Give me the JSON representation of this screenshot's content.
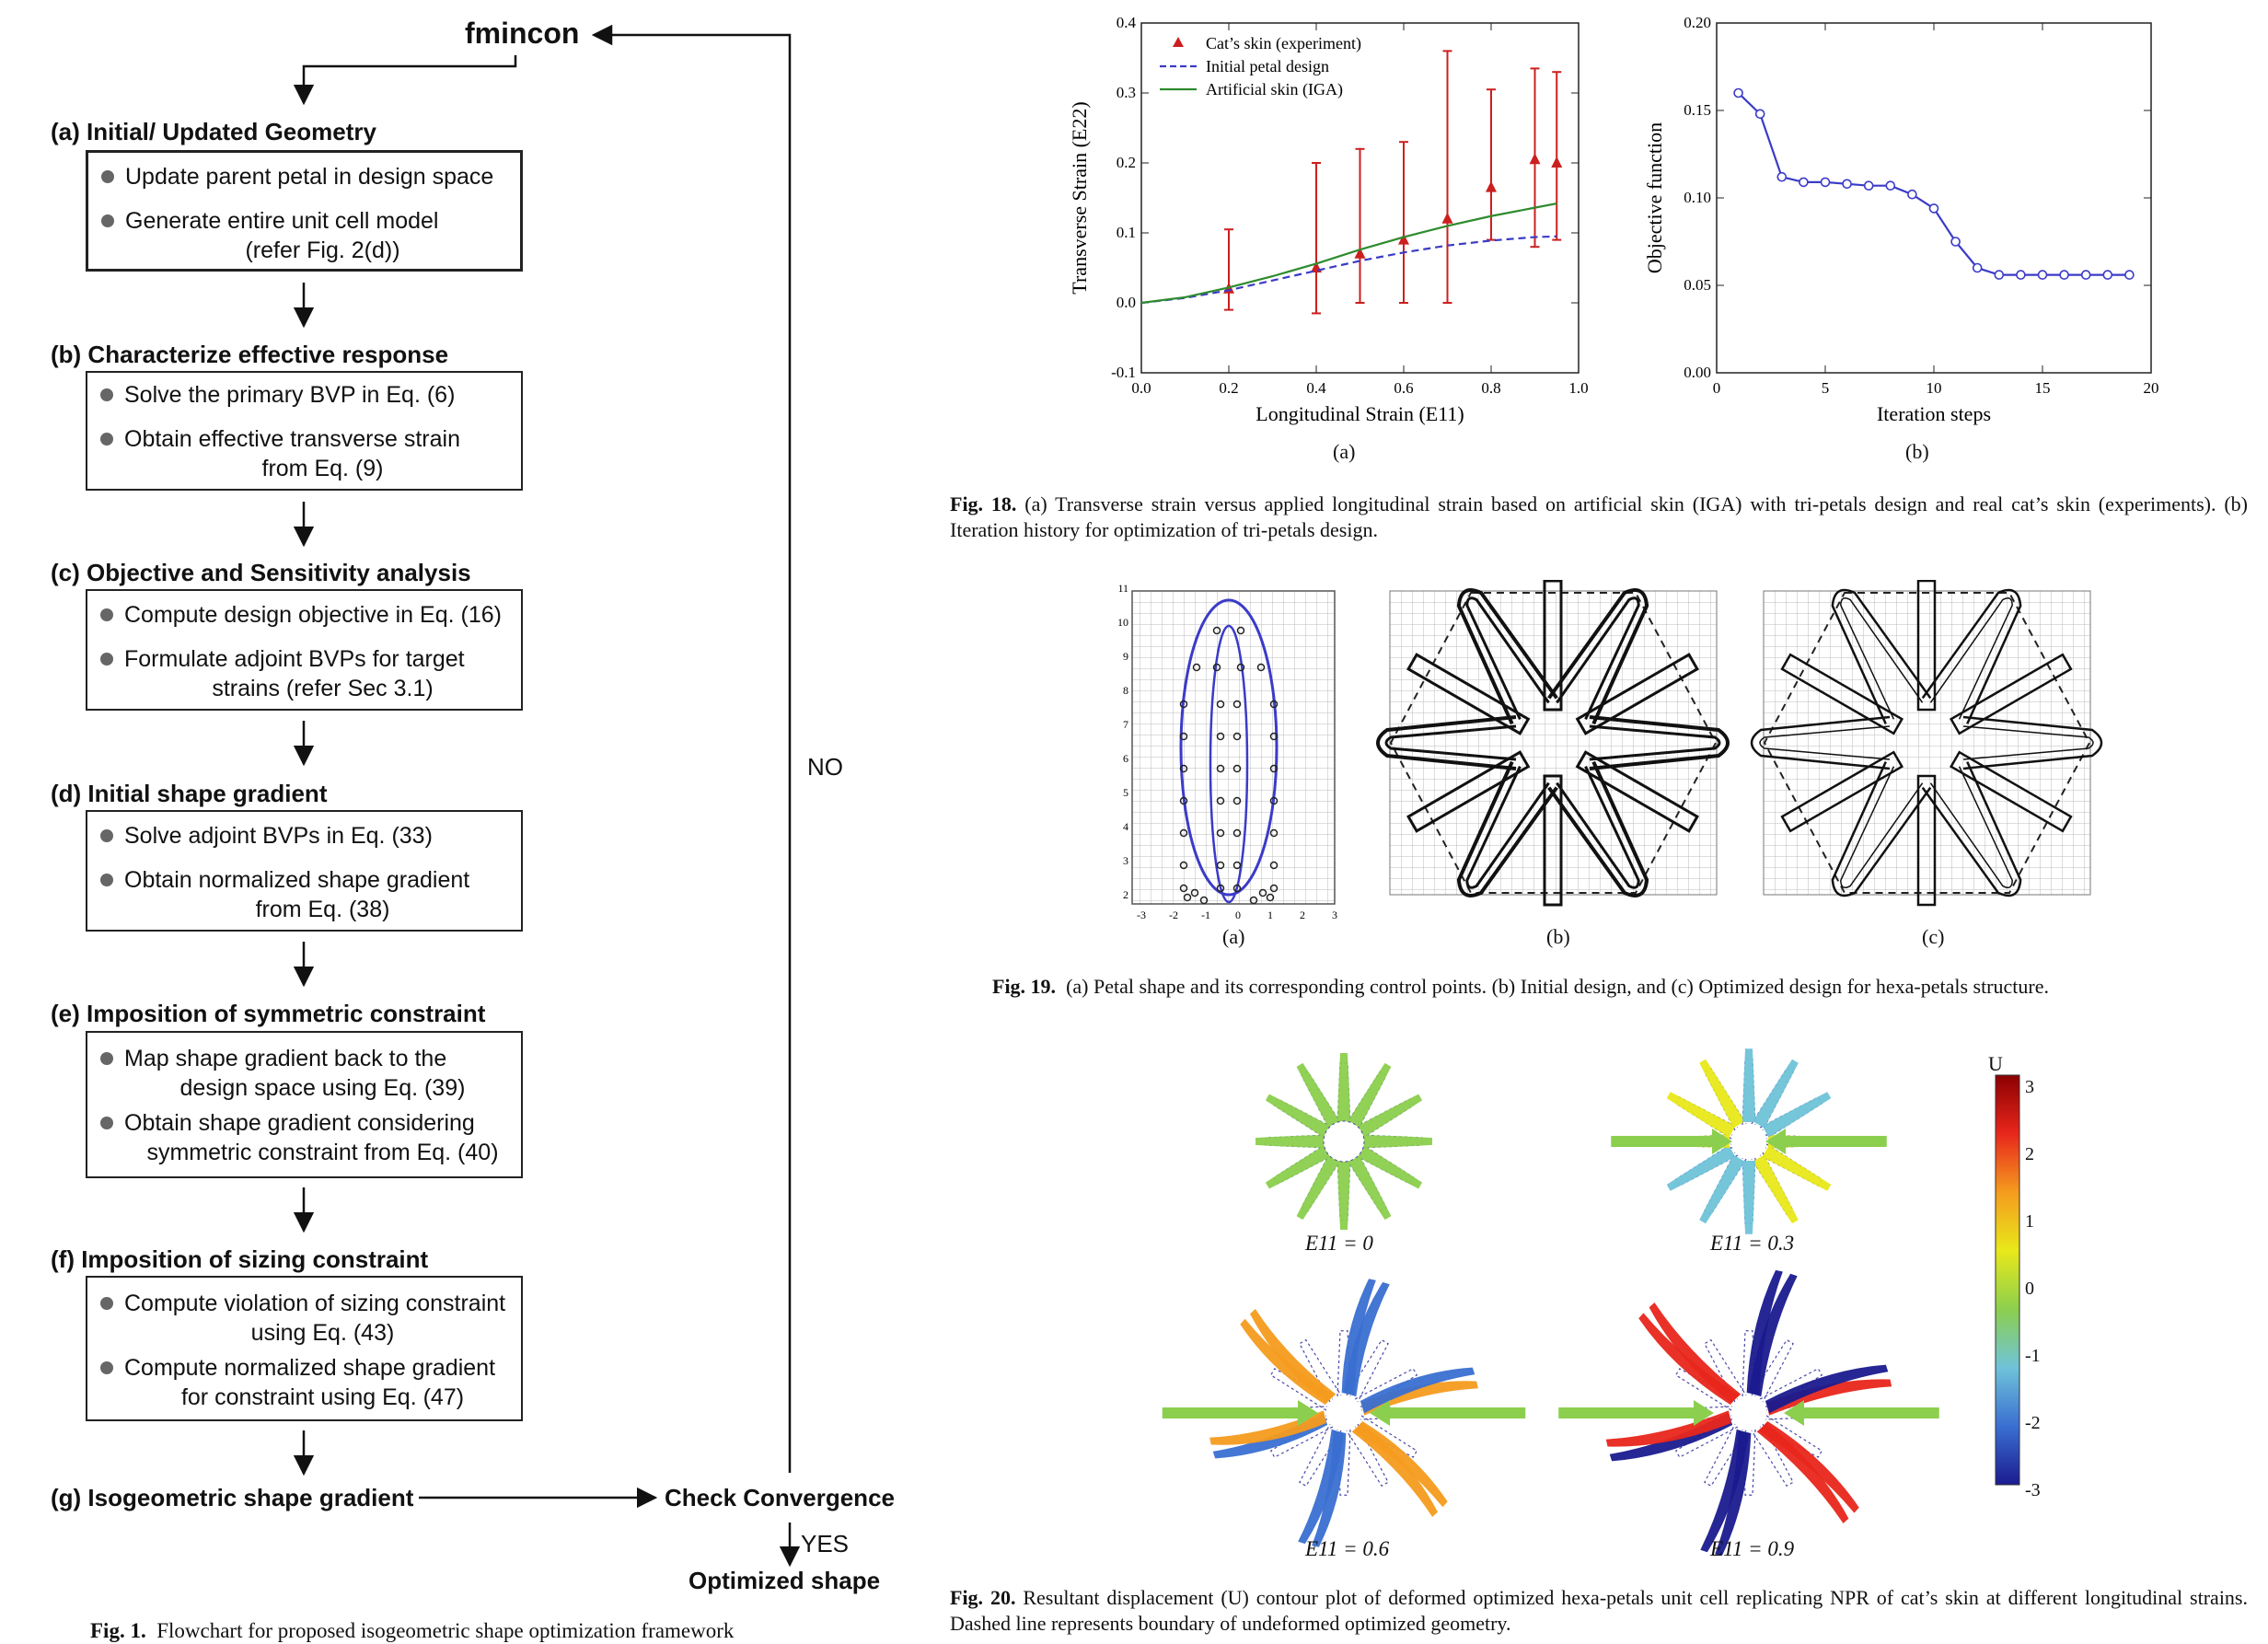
{
  "flowchart": {
    "top_label": "fmincon",
    "loop_label": "NO",
    "yes_label": "YES",
    "check_label": "Check Convergence",
    "final_label": "Optimized shape",
    "steps": [
      {
        "title": "(a) Initial/ Updated Geometry",
        "items": [
          [
            "Update parent petal in design space"
          ],
          [
            "Generate entire unit cell model",
            "(refer Fig. 2(d))"
          ]
        ]
      },
      {
        "title": "(b) Characterize effective response",
        "items": [
          [
            "Solve the primary BVP in Eq. (6)"
          ],
          [
            "Obtain effective transverse strain",
            "from Eq. (9)"
          ]
        ]
      },
      {
        "title": "(c) Objective and Sensitivity analysis",
        "items": [
          [
            "Compute design objective in Eq. (16)"
          ],
          [
            "Formulate adjoint BVPs for target",
            "strains (refer Sec 3.1)"
          ]
        ]
      },
      {
        "title": "(d) Initial shape gradient",
        "items": [
          [
            "Solve adjoint BVPs in Eq. (33)"
          ],
          [
            "Obtain normalized shape gradient",
            "from Eq. (38)"
          ]
        ]
      },
      {
        "title": "(e) Imposition of symmetric constraint",
        "items": [
          [
            "Map shape gradient back to the",
            "design space using Eq. (39)"
          ],
          [
            "Obtain shape gradient considering",
            "symmetric constraint from Eq. (40)"
          ]
        ]
      },
      {
        "title": "(f) Imposition of sizing constraint",
        "items": [
          [
            "Compute violation of sizing constraint",
            "using Eq. (43)"
          ],
          [
            "Compute normalized shape gradient",
            "for constraint using Eq. (47)"
          ]
        ]
      },
      {
        "title": "(g) Isogeometric shape gradient",
        "items": []
      }
    ],
    "caption_label": "Fig. 1.",
    "caption_text": "Flowchart for proposed isogeometric shape optimization framework"
  },
  "fig18": {
    "caption_label": "Fig. 18.",
    "caption_text": "(a) Transverse strain versus applied longitudinal strain based on artificial skin (IGA) with tri-petals design and real cat’s skin (experiments). (b) Iteration history for optimization of tri-petals design.",
    "sub_a": "(a)",
    "sub_b": "(b)"
  },
  "fig19": {
    "caption_label": "Fig. 19.",
    "caption_text": "(a) Petal shape and its corresponding control points. (b) Initial design, and (c) Optimized design for hexa-petals structure.",
    "sub_a": "(a)",
    "sub_b": "(b)",
    "sub_c": "(c)",
    "a_xticks": [
      "-3",
      "-2",
      "-1",
      "0",
      "1",
      "2",
      "3"
    ],
    "a_yticks": [
      "2",
      "3",
      "4",
      "5",
      "6",
      "7",
      "8",
      "9",
      "10",
      "11"
    ]
  },
  "fig20": {
    "caption_label": "Fig. 20.",
    "caption_text": "Resultant displacement (U) contour plot of deformed optimized hexa-petals unit cell replicating NPR of cat’s skin at different longitudinal strains. Dashed line represents boundary of undeformed optimized geometry.",
    "panel_labels": [
      "E11 = 0",
      "E11 = 0.3",
      "E11 = 0.6",
      "E11 = 0.9"
    ],
    "colorbar_title": "U",
    "colorbar_ticks": [
      "3",
      "2",
      "1",
      "0",
      "-1",
      "-2",
      "-3"
    ],
    "colorbar_colors": [
      "#8b0000",
      "#e8261c",
      "#f59b1e",
      "#e8e81a",
      "#8ccf4e",
      "#6fc3d9",
      "#3a6fd1",
      "#1b1b8f"
    ]
  },
  "chart_data": [
    {
      "type": "line",
      "xlabel": "Longitudinal Strain (E11)",
      "ylabel": "Transverse Strain (E22)",
      "xlim": [
        0,
        1.0
      ],
      "ylim": [
        -0.1,
        0.4
      ],
      "xticks": [
        "0.0",
        "0.2",
        "0.4",
        "0.6",
        "0.8",
        "1.0"
      ],
      "yticks": [
        "-0.1",
        "0.0",
        "0.1",
        "0.2",
        "0.3",
        "0.4"
      ],
      "legend_position": "top-left",
      "series": [
        {
          "name": "Cat’s skin (experiment)",
          "style": "triangle-errorbar",
          "color": "#cc1f1f",
          "x": [
            0.2,
            0.4,
            0.5,
            0.6,
            0.7,
            0.8,
            0.9,
            0.95
          ],
          "y": [
            0.02,
            0.05,
            0.07,
            0.09,
            0.12,
            0.165,
            0.205,
            0.2
          ],
          "err_low": [
            -0.01,
            -0.015,
            0.0,
            0.0,
            0.0,
            0.09,
            0.08,
            0.09
          ],
          "err_high": [
            0.105,
            0.2,
            0.22,
            0.23,
            0.36,
            0.305,
            0.335,
            0.33
          ]
        },
        {
          "name": "Initial petal design",
          "style": "dashed",
          "color": "#3b3bc8",
          "x": [
            0,
            0.1,
            0.2,
            0.3,
            0.4,
            0.5,
            0.6,
            0.7,
            0.8,
            0.9,
            0.95
          ],
          "y": [
            0,
            0.007,
            0.018,
            0.032,
            0.046,
            0.06,
            0.072,
            0.082,
            0.089,
            0.094,
            0.095
          ]
        },
        {
          "name": "Artificial skin (IGA)",
          "style": "solid",
          "color": "#2e8b2e",
          "x": [
            0,
            0.1,
            0.2,
            0.3,
            0.4,
            0.5,
            0.6,
            0.7,
            0.8,
            0.9,
            0.95
          ],
          "y": [
            0,
            0.008,
            0.022,
            0.038,
            0.056,
            0.076,
            0.094,
            0.11,
            0.124,
            0.136,
            0.142
          ]
        }
      ]
    },
    {
      "type": "line",
      "xlabel": "Iteration steps",
      "ylabel": "Objective function",
      "xlim": [
        0,
        20
      ],
      "ylim": [
        0,
        0.2
      ],
      "xticks": [
        "0",
        "5",
        "10",
        "15",
        "20"
      ],
      "yticks": [
        "0.00",
        "0.05",
        "0.10",
        "0.15",
        "0.20"
      ],
      "series": [
        {
          "name": "",
          "style": "line-circle",
          "color": "#3b3bc8",
          "x": [
            1,
            2,
            3,
            4,
            5,
            6,
            7,
            8,
            9,
            10,
            11,
            12,
            13,
            14,
            15,
            16,
            17,
            18,
            19
          ],
          "y": [
            0.16,
            0.148,
            0.112,
            0.109,
            0.109,
            0.108,
            0.107,
            0.107,
            0.102,
            0.094,
            0.075,
            0.06,
            0.056,
            0.056,
            0.056,
            0.056,
            0.056,
            0.056,
            0.056
          ]
        }
      ]
    }
  ]
}
